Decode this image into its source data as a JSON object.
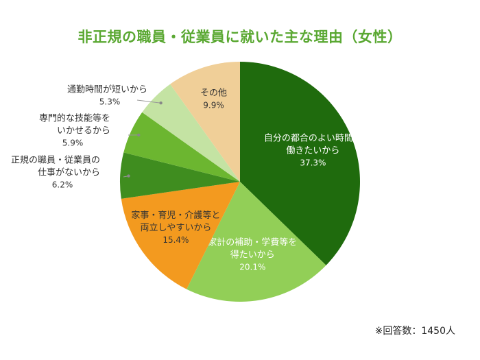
{
  "chart_data": {
    "type": "pie",
    "title": "非正規の職員・従業員に就いた主な理由（女性）",
    "unit": "%",
    "slices": [
      {
        "label_lines": [
          "自分の都合のよい時間に",
          "働きたいから"
        ],
        "pct_text": "37.3%",
        "value": 37.3,
        "color": "#1f6b0d",
        "text_color": "#ffffff",
        "label_mode": "inside"
      },
      {
        "label_lines": [
          "家計の補助・学費等を",
          "得たいから"
        ],
        "pct_text": "20.1%",
        "value": 20.1,
        "color": "#92cf57",
        "text_color": "#ffffff",
        "label_mode": "inside"
      },
      {
        "label_lines": [
          "家事・育児・介護等と",
          "両立しやすいから"
        ],
        "pct_text": "15.4%",
        "value": 15.4,
        "color": "#f39a1f",
        "text_color": "#333333",
        "label_mode": "inside"
      },
      {
        "label_lines": [
          "正規の職員・従業員の",
          "仕事がないから"
        ],
        "pct_text": "6.2%",
        "value": 6.2,
        "color": "#3f8d1f",
        "text_color": "#333333",
        "label_mode": "outside"
      },
      {
        "label_lines": [
          "専門的な技能等を",
          "いかせるから"
        ],
        "pct_text": "5.9%",
        "value": 5.9,
        "color": "#6cb630",
        "text_color": "#333333",
        "label_mode": "outside"
      },
      {
        "label_lines": [
          "通勤時間が短いから"
        ],
        "pct_text": "5.3%",
        "value": 5.3,
        "color": "#c4e3a3",
        "text_color": "#333333",
        "label_mode": "outside"
      },
      {
        "label_lines": [
          "その他"
        ],
        "pct_text": "9.9%",
        "value": 9.9,
        "color": "#f0cf98",
        "text_color": "#333333",
        "label_mode": "inside"
      }
    ]
  },
  "footnote": "※回答数：1450人"
}
